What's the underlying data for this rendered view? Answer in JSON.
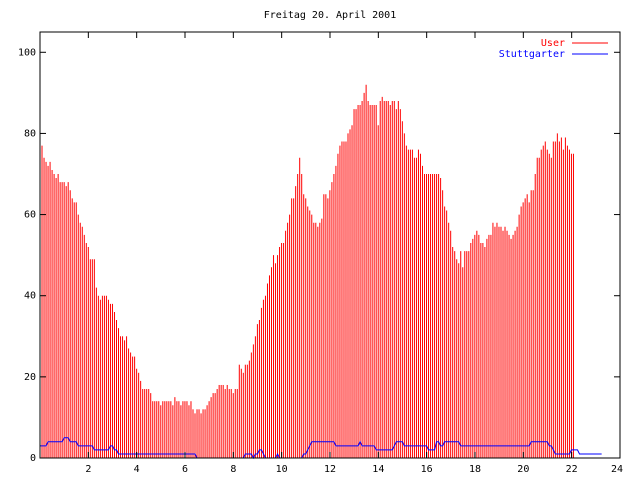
{
  "chart_data": {
    "type": "bar",
    "title": "Freitag 20. April 2001",
    "xlabel": "",
    "ylabel": "",
    "xlim": [
      0,
      24
    ],
    "ylim": [
      0,
      105
    ],
    "x_ticks": [
      2,
      4,
      6,
      8,
      10,
      12,
      14,
      16,
      18,
      20,
      22,
      24
    ],
    "y_ticks": [
      0,
      20,
      40,
      60,
      80,
      100
    ],
    "grid": false,
    "legend_position": "top-right",
    "series": [
      {
        "name": "User",
        "style": "impulses",
        "color": "#ff0000",
        "x_step_hours": 0.0833,
        "values": [
          78,
          77,
          74,
          73,
          72,
          73,
          71,
          70,
          69,
          70,
          68,
          68,
          68,
          67,
          68,
          66,
          64,
          63,
          63,
          60,
          58,
          57,
          55,
          53,
          52,
          49,
          49,
          49,
          42,
          40,
          39,
          40,
          40,
          40,
          39,
          38,
          38,
          36,
          34,
          32,
          30,
          30,
          29,
          30,
          27,
          26,
          25,
          25,
          22,
          21,
          19,
          17,
          17,
          17,
          17,
          16,
          14,
          14,
          14,
          14,
          13,
          14,
          14,
          14,
          14,
          14,
          13,
          15,
          14,
          14,
          13,
          14,
          14,
          14,
          13,
          14,
          12,
          11,
          12,
          12,
          11,
          12,
          12,
          13,
          14,
          15,
          16,
          16,
          17,
          18,
          18,
          18,
          17,
          18,
          17,
          17,
          16,
          17,
          17,
          23,
          22,
          21,
          23,
          23,
          24,
          26,
          28,
          30,
          33,
          34,
          37,
          39,
          40,
          43,
          45,
          47,
          50,
          48,
          50,
          52,
          53,
          53,
          56,
          58,
          60,
          64,
          64,
          67,
          70,
          74,
          70,
          65,
          64,
          62,
          61,
          60,
          58,
          58,
          57,
          58,
          59,
          65,
          65,
          64,
          66,
          68,
          70,
          72,
          75,
          77,
          78,
          78,
          78,
          80,
          81,
          82,
          86,
          86,
          87,
          87,
          88,
          90,
          92,
          88,
          87,
          87,
          87,
          87,
          82,
          88,
          89,
          88,
          88,
          88,
          87,
          88,
          88,
          86,
          88,
          86,
          83,
          80,
          77,
          76,
          76,
          76,
          74,
          74,
          76,
          75,
          72,
          70,
          70,
          70,
          70,
          70,
          70,
          70,
          70,
          69,
          66,
          62,
          61,
          58,
          56,
          52,
          51,
          49,
          48,
          51,
          47,
          51,
          51,
          51,
          53,
          54,
          55,
          56,
          55,
          53,
          53,
          52,
          54,
          55,
          55,
          58,
          57,
          58,
          57,
          57,
          56,
          57,
          56,
          55,
          54,
          55,
          56,
          57,
          60,
          62,
          63,
          64,
          65,
          63,
          66,
          66,
          70,
          74,
          74,
          76,
          77,
          78,
          76,
          75,
          74,
          78,
          78,
          80,
          78,
          79,
          76,
          79,
          77,
          76,
          75,
          75
        ]
      },
      {
        "name": "Stuttgarter",
        "style": "lines",
        "color": "#0000ff",
        "x_step_hours": 0.0833,
        "values": [
          3,
          3,
          3,
          3,
          4,
          4,
          4,
          4,
          4,
          4,
          4,
          4,
          5,
          5,
          5,
          4,
          4,
          4,
          4,
          3,
          3,
          3,
          3,
          3,
          3,
          3,
          3,
          2,
          2,
          2,
          2,
          2,
          2,
          2,
          2,
          3,
          3,
          2,
          2,
          1,
          1,
          1,
          1,
          1,
          1,
          1,
          1,
          1,
          1,
          1,
          1,
          1,
          1,
          1,
          1,
          1,
          1,
          1,
          1,
          1,
          1,
          1,
          1,
          1,
          1,
          1,
          1,
          1,
          1,
          1,
          1,
          1,
          1,
          1,
          1,
          1,
          1,
          1,
          0,
          0,
          0,
          0,
          0,
          0,
          0,
          0,
          0,
          0,
          0,
          0,
          0,
          0,
          0,
          0,
          0,
          0,
          0,
          0,
          0,
          0,
          0,
          0,
          1,
          1,
          1,
          1,
          0,
          1,
          1,
          2,
          2,
          1,
          0,
          0,
          0,
          0,
          0,
          0,
          1,
          0,
          0,
          0,
          0,
          0,
          0,
          0,
          0,
          0,
          0,
          0,
          0,
          1,
          1,
          2,
          3,
          4,
          4,
          4,
          4,
          4,
          4,
          4,
          4,
          4,
          4,
          4,
          4,
          3,
          3,
          3,
          3,
          3,
          3,
          3,
          3,
          3,
          3,
          3,
          3,
          4,
          3,
          3,
          3,
          3,
          3,
          3,
          3,
          2,
          2,
          2,
          2,
          2,
          2,
          2,
          2,
          2,
          3,
          4,
          4,
          4,
          4,
          3,
          3,
          3,
          3,
          3,
          3,
          3,
          3,
          3,
          3,
          3,
          3,
          2,
          2,
          2,
          2,
          4,
          4,
          3,
          3,
          4,
          4,
          4,
          4,
          4,
          4,
          4,
          4,
          3,
          3,
          3,
          3,
          3,
          3,
          3,
          3,
          3,
          3,
          3,
          3,
          3,
          3,
          3,
          3,
          3,
          3,
          3,
          3,
          3,
          3,
          3,
          3,
          3,
          3,
          3,
          3,
          3,
          3,
          3,
          3,
          3,
          3,
          3,
          4,
          4,
          4,
          4,
          4,
          4,
          4,
          4,
          4,
          3,
          3,
          2,
          1,
          1,
          1,
          1,
          1,
          1,
          1,
          1,
          2,
          2,
          2,
          2,
          1,
          1,
          1,
          1,
          1,
          1,
          1,
          1,
          1,
          1,
          1,
          1
        ]
      }
    ]
  }
}
